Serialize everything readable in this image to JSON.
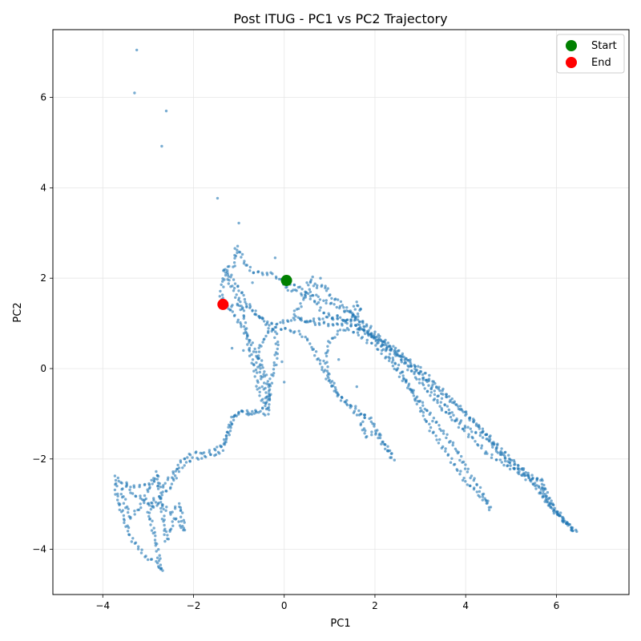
{
  "chart_data": {
    "type": "scatter",
    "title": "Post ITUG - PC1 vs PC2 Trajectory",
    "xlabel": "PC1",
    "ylabel": "PC2",
    "xlim": [
      -5.1,
      7.6
    ],
    "ylim": [
      -5.0,
      7.5
    ],
    "xticks": [
      -4,
      -2,
      0,
      2,
      4,
      6
    ],
    "yticks": [
      -4,
      -2,
      0,
      2,
      4,
      6
    ],
    "grid": true,
    "legend_position": "upper right",
    "colors": {
      "trajectory": "#1f77b4",
      "start": "#008000",
      "end": "#ff0000"
    },
    "series": [
      {
        "name": "Start",
        "points": [
          [
            0.05,
            1.95
          ]
        ]
      },
      {
        "name": "End",
        "points": [
          [
            -1.35,
            1.42
          ]
        ]
      }
    ],
    "trajectory_path": [
      [
        0.05,
        1.95
      ],
      [
        0.3,
        1.8
      ],
      [
        0.6,
        1.65
      ],
      [
        0.9,
        1.5
      ],
      [
        1.2,
        1.35
      ],
      [
        1.5,
        1.2
      ],
      [
        1.8,
        1.0
      ],
      [
        2.1,
        0.7
      ],
      [
        2.5,
        0.3
      ],
      [
        3.0,
        -0.3
      ],
      [
        3.5,
        -0.9
      ],
      [
        4.0,
        -1.4
      ],
      [
        4.5,
        -1.9
      ],
      [
        5.0,
        -2.2
      ],
      [
        5.4,
        -2.4
      ],
      [
        5.65,
        -2.5
      ],
      [
        5.9,
        -3.0
      ],
      [
        6.2,
        -3.4
      ],
      [
        6.42,
        -3.6
      ],
      [
        6.0,
        -3.2
      ],
      [
        5.3,
        -2.3
      ],
      [
        4.6,
        -1.6
      ],
      [
        3.9,
        -0.9
      ],
      [
        3.2,
        -0.3
      ],
      [
        2.6,
        0.2
      ],
      [
        2.1,
        0.6
      ],
      [
        1.6,
        0.95
      ],
      [
        1.2,
        1.15
      ],
      [
        0.8,
        1.1
      ],
      [
        0.5,
        1.05
      ],
      [
        0.2,
        1.1
      ],
      [
        -0.1,
        1.0
      ],
      [
        -0.3,
        0.85
      ],
      [
        -0.5,
        0.6
      ],
      [
        -0.6,
        0.2
      ],
      [
        -0.5,
        -0.2
      ],
      [
        -0.4,
        -0.6
      ],
      [
        -0.35,
        -1.0
      ],
      [
        -0.6,
        -1.0
      ],
      [
        -0.9,
        -0.95
      ],
      [
        -1.05,
        -1.0
      ],
      [
        -1.2,
        -1.3
      ],
      [
        -1.3,
        -1.6
      ],
      [
        -1.5,
        -1.8
      ],
      [
        -1.8,
        -1.85
      ],
      [
        -2.1,
        -1.9
      ],
      [
        -2.3,
        -2.1
      ],
      [
        -2.5,
        -2.4
      ],
      [
        -2.7,
        -2.6
      ],
      [
        -2.9,
        -2.5
      ],
      [
        -3.1,
        -2.6
      ],
      [
        -3.4,
        -2.6
      ],
      [
        -3.6,
        -2.5
      ],
      [
        -3.72,
        -2.4
      ],
      [
        -3.7,
        -2.8
      ],
      [
        -3.6,
        -3.1
      ],
      [
        -3.5,
        -3.4
      ],
      [
        -3.4,
        -3.7
      ],
      [
        -3.2,
        -4.0
      ],
      [
        -3.0,
        -4.2
      ],
      [
        -2.8,
        -4.3
      ],
      [
        -2.7,
        -4.5
      ],
      [
        -2.8,
        -4.0
      ],
      [
        -2.9,
        -3.5
      ],
      [
        -3.0,
        -3.2
      ],
      [
        -2.9,
        -2.9
      ],
      [
        -2.7,
        -3.0
      ],
      [
        -2.5,
        -3.2
      ],
      [
        -2.3,
        -3.0
      ],
      [
        -2.2,
        -3.6
      ],
      [
        -2.4,
        -3.3
      ],
      [
        -2.6,
        -3.8
      ],
      [
        -2.8,
        -2.3
      ],
      [
        -3.0,
        -2.7
      ],
      [
        -3.2,
        -3.1
      ],
      [
        -3.4,
        -3.3
      ],
      [
        -3.6,
        -2.7
      ],
      [
        -3.5,
        -2.6
      ],
      [
        -3.3,
        -2.8
      ],
      [
        -3.1,
        -2.9
      ],
      [
        -2.9,
        -3.1
      ],
      [
        -2.7,
        -2.8
      ],
      [
        -2.5,
        -2.6
      ],
      [
        -2.3,
        -2.2
      ],
      [
        -2.0,
        -2.0
      ],
      [
        -1.7,
        -1.95
      ],
      [
        -1.4,
        -1.85
      ],
      [
        -1.25,
        -1.5
      ],
      [
        -1.15,
        -1.1
      ],
      [
        -1.0,
        -0.95
      ],
      [
        -0.8,
        -1.0
      ],
      [
        -0.5,
        -0.9
      ],
      [
        -0.35,
        -0.7
      ],
      [
        -0.3,
        -0.3
      ],
      [
        -0.2,
        0.1
      ],
      [
        -0.15,
        0.5
      ],
      [
        -0.2,
        0.8
      ],
      [
        -0.4,
        1.0
      ],
      [
        -0.6,
        1.2
      ],
      [
        -0.8,
        1.35
      ],
      [
        -1.0,
        1.4
      ],
      [
        -1.3,
        1.4
      ],
      [
        -1.4,
        1.6
      ],
      [
        -1.35,
        1.9
      ],
      [
        -1.3,
        2.2
      ],
      [
        -1.1,
        2.3
      ],
      [
        -1.05,
        2.7
      ],
      [
        -0.95,
        2.5
      ],
      [
        -0.85,
        2.3
      ],
      [
        -0.7,
        2.15
      ],
      [
        -0.5,
        2.1
      ],
      [
        -0.3,
        2.1
      ],
      [
        -0.1,
        2.0
      ],
      [
        0.1,
        1.75
      ],
      [
        0.3,
        1.7
      ],
      [
        0.5,
        1.6
      ],
      [
        0.7,
        1.5
      ],
      [
        0.8,
        1.3
      ],
      [
        1.0,
        1.15
      ],
      [
        1.3,
        1.05
      ],
      [
        1.6,
        0.9
      ],
      [
        1.9,
        0.75
      ],
      [
        2.2,
        0.6
      ],
      [
        2.5,
        0.4
      ],
      [
        2.9,
        0.0
      ],
      [
        3.3,
        -0.5
      ],
      [
        3.7,
        -1.0
      ],
      [
        4.0,
        -1.3
      ],
      [
        4.4,
        -1.5
      ],
      [
        4.7,
        -1.8
      ],
      [
        4.9,
        -2.0
      ],
      [
        5.2,
        -2.2
      ],
      [
        5.5,
        -2.4
      ],
      [
        5.7,
        -2.5
      ],
      [
        5.75,
        -2.8
      ],
      [
        6.0,
        -3.2
      ],
      [
        6.3,
        -3.5
      ],
      [
        6.4,
        -3.6
      ],
      [
        6.1,
        -3.3
      ],
      [
        5.8,
        -3.0
      ],
      [
        5.6,
        -2.6
      ],
      [
        5.3,
        -2.4
      ],
      [
        5.0,
        -2.15
      ],
      [
        4.7,
        -1.8
      ],
      [
        4.4,
        -1.4
      ],
      [
        4.2,
        -1.2
      ],
      [
        3.9,
        -0.9
      ],
      [
        3.6,
        -0.6
      ],
      [
        3.3,
        -0.3
      ],
      [
        3.0,
        0.0
      ],
      [
        2.7,
        0.2
      ],
      [
        2.4,
        0.4
      ],
      [
        2.1,
        0.6
      ],
      [
        1.8,
        0.8
      ],
      [
        1.6,
        1.0
      ],
      [
        1.5,
        1.2
      ],
      [
        1.6,
        1.45
      ],
      [
        1.7,
        1.3
      ],
      [
        1.5,
        1.1
      ],
      [
        1.3,
        1.0
      ],
      [
        1.1,
        0.95
      ],
      [
        0.9,
        1.0
      ],
      [
        0.7,
        1.0
      ],
      [
        0.5,
        1.05
      ],
      [
        0.3,
        1.1
      ],
      [
        0.2,
        1.2
      ],
      [
        0.35,
        1.4
      ],
      [
        0.5,
        1.65
      ],
      [
        0.6,
        2.0
      ],
      [
        0.7,
        1.8
      ],
      [
        0.9,
        1.85
      ],
      [
        1.0,
        1.6
      ],
      [
        1.2,
        1.5
      ],
      [
        1.4,
        1.3
      ],
      [
        1.6,
        1.1
      ],
      [
        1.8,
        0.9
      ],
      [
        2.0,
        0.65
      ],
      [
        2.2,
        0.45
      ],
      [
        2.4,
        0.2
      ],
      [
        2.6,
        -0.1
      ],
      [
        2.8,
        -0.5
      ],
      [
        3.0,
        -0.9
      ],
      [
        3.2,
        -1.3
      ],
      [
        3.4,
        -1.6
      ],
      [
        3.6,
        -1.9
      ],
      [
        3.8,
        -2.2
      ],
      [
        4.0,
        -2.5
      ],
      [
        4.2,
        -2.7
      ],
      [
        4.4,
        -2.9
      ],
      [
        4.55,
        -3.1
      ],
      [
        4.4,
        -2.8
      ],
      [
        4.2,
        -2.5
      ],
      [
        4.0,
        -2.2
      ],
      [
        3.8,
        -1.8
      ],
      [
        3.5,
        -1.4
      ],
      [
        3.2,
        -1.0
      ],
      [
        2.9,
        -0.6
      ],
      [
        2.6,
        -0.2
      ],
      [
        2.3,
        0.2
      ],
      [
        2.0,
        0.5
      ],
      [
        1.7,
        0.7
      ],
      [
        1.4,
        0.9
      ],
      [
        1.2,
        0.8
      ],
      [
        1.0,
        0.6
      ],
      [
        0.9,
        0.2
      ],
      [
        1.0,
        -0.2
      ],
      [
        1.2,
        -0.6
      ],
      [
        1.4,
        -0.8
      ],
      [
        1.6,
        -1.0
      ],
      [
        1.9,
        -1.1
      ],
      [
        2.1,
        -1.5
      ],
      [
        2.3,
        -1.8
      ],
      [
        2.4,
        -2.0
      ],
      [
        2.2,
        -1.7
      ],
      [
        2.0,
        -1.4
      ],
      [
        1.8,
        -1.5
      ],
      [
        1.7,
        -1.2
      ],
      [
        1.8,
        -1.05
      ],
      [
        1.6,
        -0.9
      ],
      [
        1.4,
        -0.75
      ],
      [
        1.2,
        -0.6
      ],
      [
        1.0,
        -0.3
      ],
      [
        0.8,
        0.1
      ],
      [
        0.6,
        0.5
      ],
      [
        0.45,
        0.7
      ],
      [
        0.3,
        0.8
      ],
      [
        0.1,
        0.85
      ],
      [
        -0.1,
        0.9
      ],
      [
        -0.3,
        1.0
      ],
      [
        -0.5,
        1.1
      ],
      [
        -0.7,
        1.3
      ],
      [
        -0.85,
        1.5
      ],
      [
        -1.0,
        1.8
      ],
      [
        -1.15,
        2.0
      ],
      [
        -1.3,
        2.2
      ],
      [
        -1.2,
        1.9
      ],
      [
        -1.1,
        1.7
      ],
      [
        -1.0,
        1.5
      ],
      [
        -0.9,
        1.2
      ],
      [
        -0.85,
        0.9
      ],
      [
        -0.8,
        0.6
      ],
      [
        -0.75,
        0.3
      ],
      [
        -0.65,
        0.0
      ],
      [
        -0.6,
        -0.3
      ],
      [
        -0.55,
        -0.55
      ],
      [
        -0.45,
        -0.75
      ],
      [
        -0.35,
        -0.85
      ],
      [
        -0.3,
        -0.6
      ],
      [
        -0.4,
        -0.2
      ],
      [
        -0.5,
        0.1
      ],
      [
        -0.65,
        0.4
      ],
      [
        -0.8,
        0.7
      ],
      [
        -0.95,
        0.95
      ],
      [
        -1.1,
        1.2
      ],
      [
        -1.25,
        1.35
      ],
      [
        -1.35,
        1.42
      ]
    ],
    "outliers": [
      [
        -3.25,
        7.05
      ],
      [
        -3.3,
        6.1
      ],
      [
        -2.6,
        5.7
      ],
      [
        -2.7,
        4.92
      ],
      [
        -1.47,
        3.77
      ],
      [
        -1.0,
        3.22
      ],
      [
        0.8,
        2.0
      ],
      [
        0.5,
        1.9
      ],
      [
        1.2,
        0.2
      ],
      [
        1.6,
        -0.4
      ],
      [
        -0.05,
        0.15
      ],
      [
        0.0,
        -0.3
      ],
      [
        -0.2,
        2.45
      ],
      [
        -0.9,
        0.4
      ],
      [
        -0.7,
        1.9
      ],
      [
        -1.15,
        0.45
      ]
    ]
  }
}
